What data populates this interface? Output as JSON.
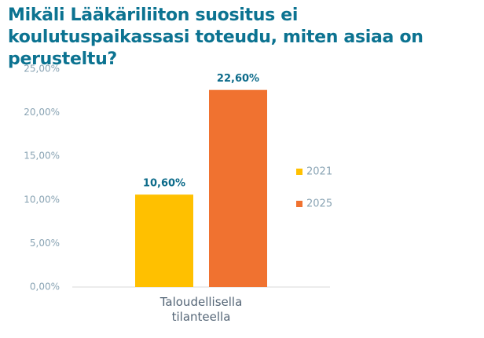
{
  "chart_data": {
    "type": "bar",
    "title": "Mikäli Lääkäriliiton suositus ei koulutuspaikassasi toteudu, miten asiaa on perusteltu?",
    "categories": [
      "Taloudellisella tilanteella"
    ],
    "series": [
      {
        "name": "2021",
        "color": "#ffc000",
        "values": [
          10.6
        ],
        "value_labels": [
          "10,60%"
        ]
      },
      {
        "name": "2025",
        "color": "#f07230",
        "values": [
          22.6
        ],
        "value_labels": [
          "22,60%"
        ]
      }
    ],
    "ylim": [
      0,
      25
    ],
    "yticks": [
      {
        "value": 0,
        "label": "0,00%"
      },
      {
        "value": 5,
        "label": "5,00%"
      },
      {
        "value": 10,
        "label": "10,00%"
      },
      {
        "value": 15,
        "label": "15,00%"
      },
      {
        "value": 20,
        "label": "20,00%"
      },
      {
        "value": 25,
        "label": "25,00%"
      }
    ],
    "legend": "right"
  }
}
